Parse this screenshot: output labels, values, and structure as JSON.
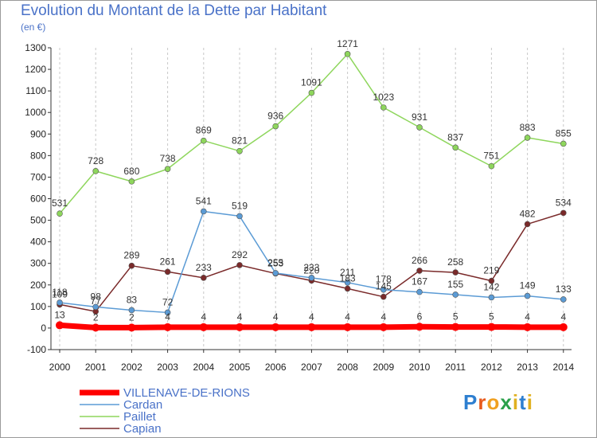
{
  "header": {
    "title": "Evolution du Montant de la Dette par Habitant",
    "subtitle": "(en €)"
  },
  "logo": {
    "text": "Proxiti"
  },
  "chart_data": {
    "type": "line",
    "title": "Evolution du Montant de la Dette par Habitant",
    "ylabel": "(en €)",
    "xlabel": "",
    "x": [
      "2000",
      "2001",
      "2002",
      "2003",
      "2004",
      "2005",
      "2006",
      "2007",
      "2008",
      "2009",
      "2010",
      "2011",
      "2012",
      "2013",
      "2014"
    ],
    "ylim": [
      -100,
      1300
    ],
    "yticks": [
      -100,
      0,
      100,
      200,
      300,
      400,
      500,
      600,
      700,
      800,
      900,
      1000,
      1100,
      1200,
      1300
    ],
    "grid": "vertical-dashed",
    "legend_position": "bottom-left",
    "series": [
      {
        "name": "VILLENAVE-DE-RIONS",
        "color": "#ff0000",
        "values": [
          13,
          2,
          2,
          4,
          4,
          4,
          4,
          4,
          4,
          4,
          6,
          5,
          5,
          4,
          4
        ]
      },
      {
        "name": "Cardan",
        "color": "#5b9bd5",
        "values": [
          118,
          98,
          83,
          72,
          541,
          519,
          255,
          233,
          211,
          178,
          167,
          155,
          142,
          149,
          133
        ]
      },
      {
        "name": "Paillet",
        "color": "#8ed65c",
        "values": [
          531,
          728,
          680,
          738,
          869,
          821,
          936,
          1091,
          1271,
          1023,
          931,
          837,
          751,
          883,
          855
        ]
      },
      {
        "name": "Capian",
        "color": "#7a2a2a",
        "values": [
          109,
          77,
          289,
          261,
          233,
          292,
          253,
          220,
          183,
          145,
          266,
          258,
          219,
          482,
          534
        ]
      }
    ]
  }
}
